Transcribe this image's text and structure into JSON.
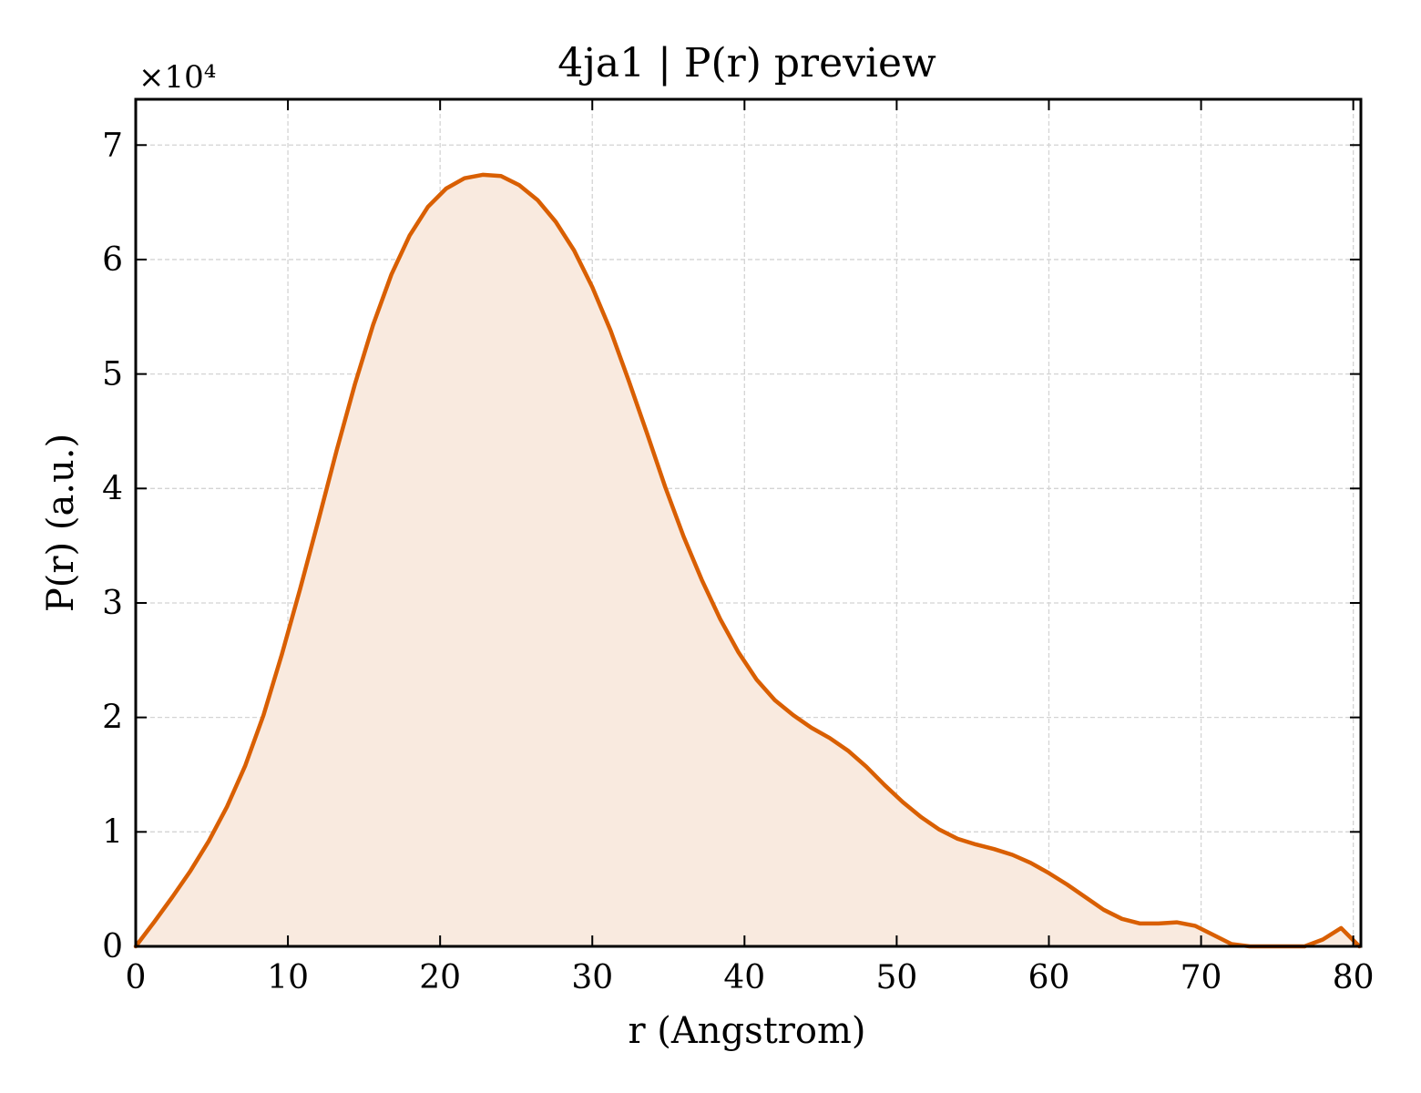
{
  "chart_data": {
    "type": "area",
    "title": "4ja1 | P(r) preview",
    "xlabel": "r (Angstrom)",
    "ylabel": "P(r) (a.u.)",
    "y_multiplier_label": "×10⁴",
    "xlim": [
      0,
      80.5
    ],
    "ylim": [
      0,
      7.4
    ],
    "y_scale_factor": 10000,
    "x_ticks": [
      0,
      10,
      20,
      30,
      40,
      50,
      60,
      70,
      80
    ],
    "y_ticks": [
      0,
      1,
      2,
      3,
      4,
      5,
      6,
      7
    ],
    "grid": true,
    "line_color": "#d95f02",
    "fill_color": "#f9eadf",
    "series": [
      {
        "x": [
          0,
          1.2,
          2.4,
          3.6,
          4.8,
          6.0,
          7.2,
          8.4,
          9.6,
          10.8,
          12.0,
          13.2,
          14.4,
          15.6,
          16.8,
          18.0,
          19.2,
          20.4,
          21.6,
          22.8,
          24.0,
          25.2,
          26.4,
          27.6,
          28.8,
          30.0,
          31.2,
          32.4,
          33.6,
          34.8,
          36.0,
          37.2,
          38.4,
          39.6,
          40.8,
          42.0,
          43.2,
          44.4,
          45.6,
          46.8,
          48.0,
          49.2,
          50.4,
          51.6,
          52.8,
          54.0,
          55.2,
          56.4,
          57.6,
          58.8,
          60.0,
          61.2,
          62.4,
          63.6,
          64.8,
          66.0,
          67.2,
          68.4,
          69.6,
          70.8,
          72.0,
          73.2,
          74.4,
          75.6,
          76.8,
          78.0,
          79.2,
          80.4
        ],
        "y": [
          0.0,
          0.21,
          0.43,
          0.66,
          0.92,
          1.22,
          1.58,
          2.02,
          2.55,
          3.12,
          3.72,
          4.33,
          4.91,
          5.43,
          5.87,
          6.21,
          6.46,
          6.62,
          6.71,
          6.74,
          6.73,
          6.65,
          6.52,
          6.33,
          6.08,
          5.76,
          5.38,
          4.94,
          4.48,
          4.01,
          3.58,
          3.2,
          2.86,
          2.57,
          2.33,
          2.15,
          2.02,
          1.91,
          1.82,
          1.71,
          1.57,
          1.41,
          1.26,
          1.13,
          1.02,
          0.94,
          0.89,
          0.85,
          0.8,
          0.73,
          0.64,
          0.54,
          0.43,
          0.32,
          0.24,
          0.2,
          0.2,
          0.21,
          0.18,
          0.1,
          0.02,
          0.0,
          0.0,
          0.0,
          0.0,
          0.06,
          0.16,
          0.0
        ]
      }
    ]
  }
}
